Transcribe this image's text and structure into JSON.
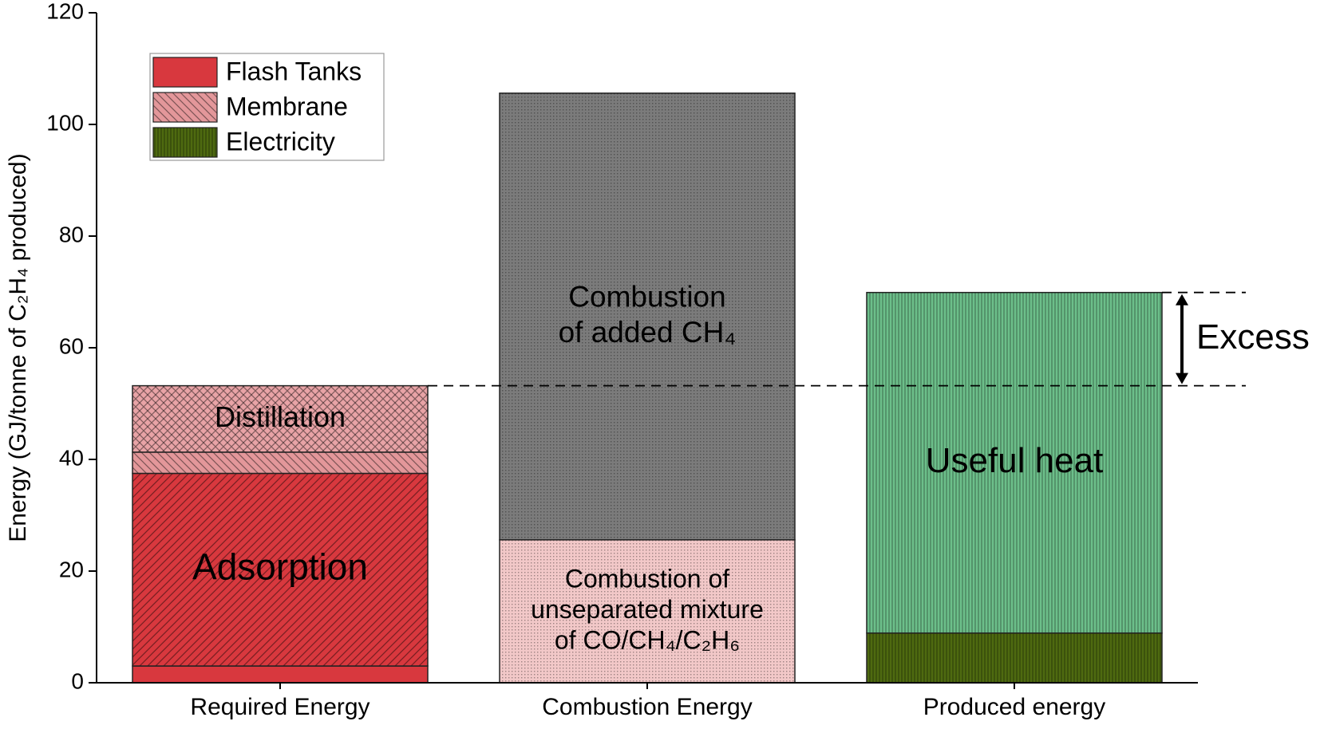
{
  "chart_data": {
    "type": "stacked_bar",
    "y_label": "Energy (GJ/tonne of C₂H₄ produced)",
    "categories": [
      "Required Energy",
      "Combustion Energy",
      "Produced energy"
    ],
    "ylim": [
      0,
      120
    ],
    "yticks": [
      0,
      20,
      40,
      60,
      80,
      100,
      120
    ],
    "grid": false,
    "legend": "upper left",
    "annotation": "Excess",
    "series": [
      {
        "name": "Flash Tanks",
        "color": "#d8383e",
        "hatch": "none",
        "values": [
          3.0,
          null,
          null
        ]
      },
      {
        "label": [
          "Adsorption"
        ],
        "color": "#d8383e",
        "hatch": "/",
        "values": [
          34.5,
          null,
          null
        ]
      },
      {
        "name": "Membrane",
        "color": "#e3979a",
        "hatch": "\\",
        "values": [
          3.8,
          null,
          null
        ]
      },
      {
        "label": [
          "Distillation"
        ],
        "color": "#e8a3a6",
        "hatch": "x",
        "values": [
          11.9,
          null,
          null
        ]
      },
      {
        "label": [
          "Combustion of",
          "unseparated mixture",
          "of CO/CH₄/C₂H₆"
        ],
        "color": "#f2c8c8",
        "hatch": ".",
        "values": [
          null,
          25.6,
          null
        ]
      },
      {
        "label": [
          "Combustion",
          "of added CH₄"
        ],
        "color": "#7b7b7b",
        "hatch": ".",
        "values": [
          null,
          80.0,
          null
        ]
      },
      {
        "name": "Electricity",
        "color": "#4e6a10",
        "hatch": "|",
        "values": [
          null,
          null,
          8.9
        ]
      },
      {
        "label": [
          "Useful heat"
        ],
        "color": "#6cbf8a",
        "hatch": "|",
        "values": [
          null,
          null,
          61.0
        ]
      }
    ]
  }
}
